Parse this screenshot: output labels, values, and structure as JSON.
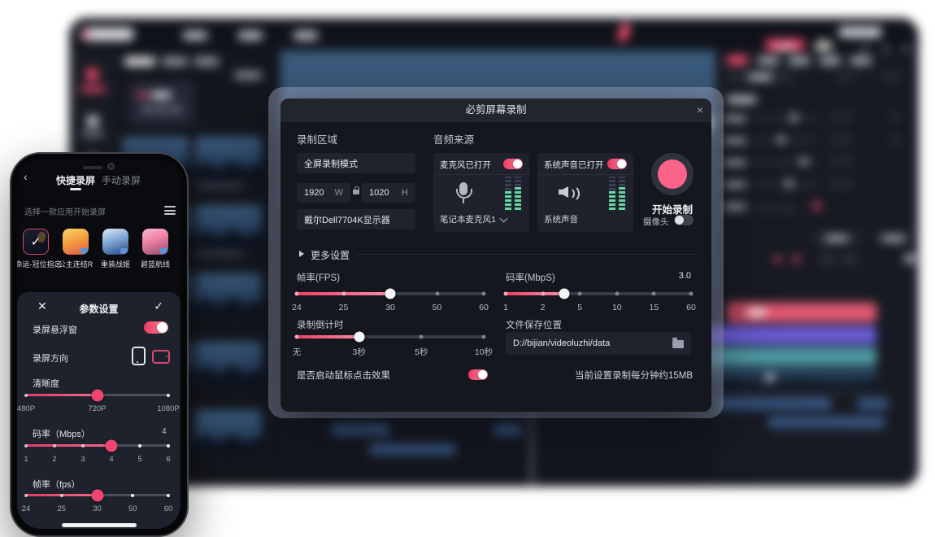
{
  "dialog": {
    "title": "必剪屏幕录制",
    "close_icon": "×",
    "record_area": {
      "label": "录制区域",
      "mode": "全屏录制模式",
      "width": "1920",
      "width_unit": "W",
      "height": "1020",
      "height_unit": "H",
      "display": "戴尔Dell7704K显示器"
    },
    "audio_source": {
      "label": "音频来源",
      "mic": {
        "status": "麦克风已打开",
        "device": "笔记本麦克风1"
      },
      "system": {
        "status": "系统声音已打开",
        "device": "系统声音"
      }
    },
    "start": {
      "button": "开始录制",
      "camera": "摄像头"
    },
    "more_settings": "更多设置",
    "fps": {
      "label": "帧率(FPS)",
      "ticks": [
        "24",
        "25",
        "30",
        "50",
        "60"
      ],
      "value": "30",
      "fill_pct": 50
    },
    "bitrate": {
      "label": "码率(MbpS)",
      "value": "3.0",
      "ticks": [
        "1",
        "2",
        "5",
        "10",
        "15",
        "60"
      ],
      "fill_pct": 31.5
    },
    "countdown": {
      "label": "录制倒计时",
      "ticks": [
        "无",
        "3秒",
        "5秒",
        "10秒"
      ],
      "value": "3秒",
      "fill_pct": 33.3
    },
    "save": {
      "label": "文件保存位置",
      "path": "D://bijian/videoluzhi/data"
    },
    "mouse_effect": "是否启动鼠标点击效果",
    "size_note": "当前设置录制每分钟约15MB"
  },
  "phone": {
    "back_icon": "‹",
    "tabs": [
      "快捷录屏",
      "手动录屏"
    ],
    "choose_hint": "选择一款应用开始录屏",
    "apps": [
      "命运-冠位指定",
      "公主连结R",
      "重装战姬",
      "碧蓝航线"
    ],
    "sheet": {
      "title": "参数设置",
      "close_icon": "✕",
      "confirm_icon": "✓",
      "float_window": "录屏悬浮窗",
      "orientation": "录屏方向",
      "clarity": {
        "label": "清晰度",
        "ticks": [
          "480P",
          "720P",
          "1080P"
        ],
        "value": "720P",
        "fill_pct": 50
      },
      "bitrate": {
        "label": "码率（Mbps）",
        "value": "4",
        "ticks": [
          "1",
          "2",
          "3",
          "4",
          "5",
          "6"
        ],
        "fill_pct": 60
      },
      "fps": {
        "label": "帧率（fps）",
        "ticks": [
          "24",
          "25",
          "30",
          "50",
          "60"
        ],
        "value": "30",
        "fill_pct": 50
      }
    }
  },
  "colors": {
    "accent": "#ee4570",
    "record_button": "#fc6388",
    "toggle_on": "#ec3a61",
    "meter_green": "#66d9a2",
    "timeline_pink": "#e25872",
    "timeline_purple": "#6a5cd8",
    "timeline_teal": "#4e9aa3",
    "audio_clip_blue": "#3b5a88"
  }
}
